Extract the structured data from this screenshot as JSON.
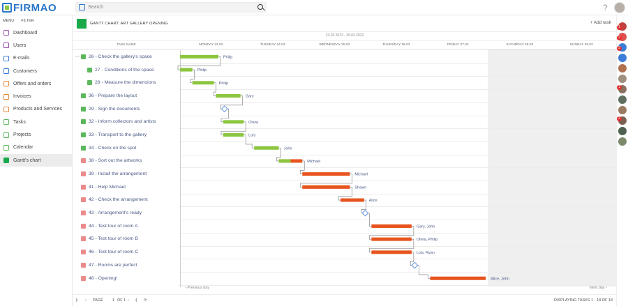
{
  "app": {
    "name": "FIRMAO"
  },
  "search": {
    "placeholder": "Search"
  },
  "topbar": {
    "help": "?"
  },
  "sidebar": {
    "menu_label": "MENU",
    "filter_label": "FILTER",
    "items": [
      {
        "label": "Dashboard",
        "icon": "dashboard-icon",
        "color": "#9b59b6"
      },
      {
        "label": "Users",
        "icon": "users-icon",
        "color": "#8e44ad"
      },
      {
        "label": "E-mails",
        "icon": "mail-icon",
        "color": "#3b7dd8"
      },
      {
        "label": "Customers",
        "icon": "customers-icon",
        "color": "#3b7dd8"
      },
      {
        "label": "Offers and orders",
        "icon": "offers-icon",
        "color": "#e58a3a"
      },
      {
        "label": "Invoices",
        "icon": "invoices-icon",
        "color": "#e58a3a"
      },
      {
        "label": "Products and Services",
        "icon": "products-icon",
        "color": "#e58a3a"
      },
      {
        "label": "Tasks",
        "icon": "tasks-icon",
        "color": "#5cb85c"
      },
      {
        "label": "Projects",
        "icon": "projects-icon",
        "color": "#5cb85c"
      },
      {
        "label": "Calendar",
        "icon": "calendar-icon",
        "color": "#5cb85c"
      },
      {
        "label": "Gantt's chart",
        "icon": "gantt-icon",
        "color": "#1aa94a",
        "active": true
      }
    ]
  },
  "header": {
    "title": "GANTT CHART: ART GALLERY OPENING",
    "add_task": "Add task",
    "date_range": "23.03.2023 - 29.03.2023"
  },
  "columns": {
    "task_name": "TASK NAME",
    "days": [
      "MONDAY 23.03",
      "TUESDAY 24.03",
      "WEDNESDAY 25.03",
      "THURSDAY 26.03",
      "FRIDAY 27.03",
      "SATURDAY 28.03",
      "SUNDAY 29.03"
    ]
  },
  "tasks": [
    {
      "label": "26 - Check the gallery's space",
      "done": true,
      "collapse": "—",
      "indent": 0,
      "start": 0.0,
      "end": 0.62,
      "color": "#8cc63f",
      "assignee": "Philip"
    },
    {
      "label": "27 - Conditions of the space",
      "done": true,
      "indent": 1,
      "start": 0.0,
      "end": 0.2,
      "color": "#8cc63f",
      "assignee": "Philip"
    },
    {
      "label": "28 - Measure the dimensions",
      "done": true,
      "indent": 1,
      "start": 0.2,
      "end": 0.55,
      "color": "#8cc63f",
      "assignee": "Philip"
    },
    {
      "label": "36 - Prepare the layout",
      "done": true,
      "indent": 0,
      "start": 0.58,
      "end": 0.98,
      "color": "#8cc63f",
      "assignee": "Gary"
    },
    {
      "label": "29 - Sign the documents",
      "done": true,
      "indent": 0,
      "milestone": 0.72
    },
    {
      "label": "32 - Inform collectors and artists",
      "done": true,
      "indent": 0,
      "start": 0.7,
      "end": 1.03,
      "color": "#8cc63f",
      "assignee": "Olivia"
    },
    {
      "label": "33 - Transport to the gallery",
      "done": true,
      "indent": 0,
      "start": 0.7,
      "end": 1.03,
      "color": "#8cc63f",
      "assignee": "Lois"
    },
    {
      "label": "34 - Check on the spot",
      "done": true,
      "indent": 0,
      "start": 1.2,
      "end": 1.6,
      "color": "#8cc63f",
      "assignee": "John"
    },
    {
      "label": "38 - Sort out the artworks",
      "done": false,
      "indent": 0,
      "start": 1.6,
      "end": 1.98,
      "color": "#e8541e",
      "progress": 0.5,
      "assignee": "Michael"
    },
    {
      "label": "39 - Install the arrangement",
      "done": false,
      "indent": 0,
      "start": 1.98,
      "end": 2.75,
      "color": "#e8541e",
      "assignee": "Michael"
    },
    {
      "label": "41 - Help Michael",
      "done": false,
      "indent": 0,
      "start": 1.98,
      "end": 2.75,
      "color": "#e8541e",
      "assignee": "Shawn"
    },
    {
      "label": "42 - Check the arrangement",
      "done": false,
      "indent": 0,
      "start": 2.6,
      "end": 2.98,
      "color": "#e8541e",
      "assignee": "Alice"
    },
    {
      "label": "43 - Arrangement's ready",
      "done": false,
      "indent": 0,
      "milestone": 3.0
    },
    {
      "label": "44 - Test tour of room A",
      "done": false,
      "indent": 0,
      "start": 3.1,
      "end": 3.75,
      "color": "#e8541e",
      "assignee": "Gary, John"
    },
    {
      "label": "45 - Test tour of room B",
      "done": false,
      "indent": 0,
      "start": 3.1,
      "end": 3.75,
      "color": "#e8541e",
      "assignee": "Olivia, Philip"
    },
    {
      "label": "46 - Test tour of room C",
      "done": false,
      "indent": 0,
      "start": 3.1,
      "end": 3.75,
      "color": "#e8541e",
      "assignee": "Lois, Ryan"
    },
    {
      "label": "47 - Rooms are perfect",
      "done": false,
      "indent": 0,
      "milestone": 3.8
    },
    {
      "label": "48 - Opening!",
      "done": false,
      "indent": 0,
      "start": 4.05,
      "end": 4.95,
      "color": "#e8541e",
      "assignee": "Alice, John"
    }
  ],
  "navigation": {
    "prev": "Previous day",
    "next": "Next day"
  },
  "pager": {
    "page_label": "PAGE",
    "page_value": "1",
    "of_label": "OF 1",
    "displaying": "DISPLAYING TASKS 1 - 18 OF 18"
  },
  "rightbar": {
    "badges": [
      "1",
      "2",
      "3",
      "1",
      "2"
    ]
  }
}
